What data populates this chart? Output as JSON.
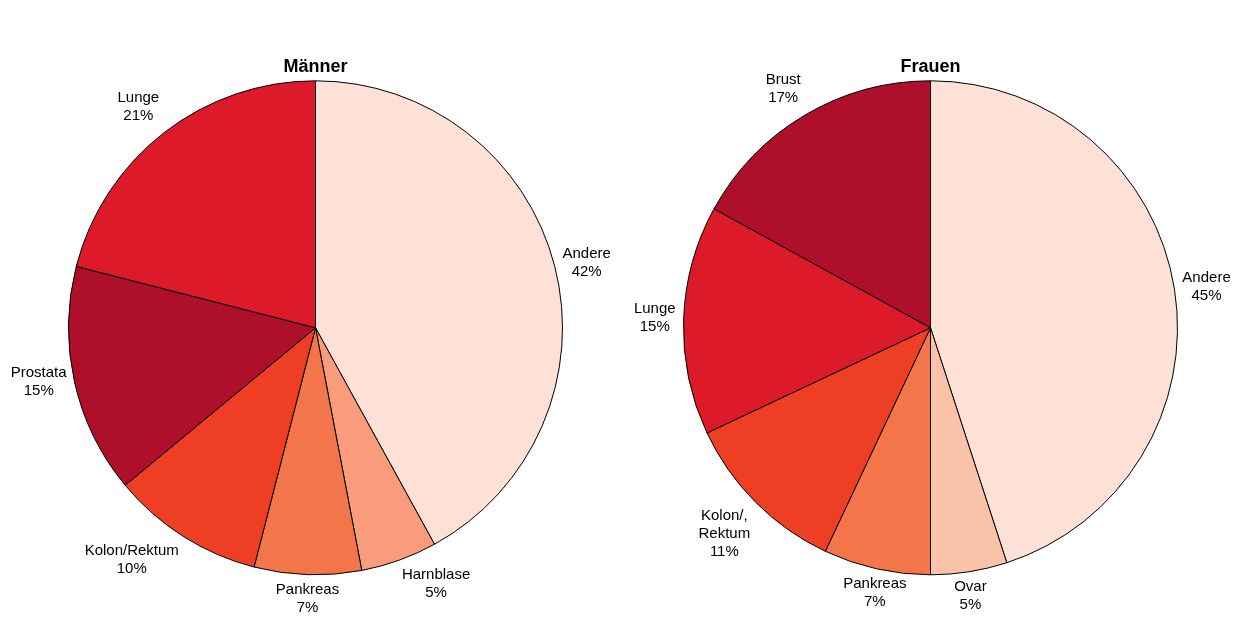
{
  "chart_data": [
    {
      "type": "pie",
      "title": "Männer",
      "categories": [
        "Andere",
        "Harnblase",
        "Pankreas",
        "Kolon/Rektum",
        "Prostata",
        "Lunge"
      ],
      "values": [
        42,
        5,
        7,
        10,
        15,
        21
      ],
      "value_labels": [
        "42%",
        "5%",
        "7%",
        "10%",
        "15%",
        "21%"
      ],
      "colors": [
        "#fde0d6",
        "#f89c7c",
        "#f2764a",
        "#ee3e23",
        "#ae0f2b",
        "#dc1a29"
      ],
      "legend": false
    },
    {
      "type": "pie",
      "title": "Frauen",
      "categories": [
        "Andere",
        "Ovar",
        "Pankreas",
        "Kolon/,\nRektum",
        "Lunge",
        "Brust"
      ],
      "values": [
        45,
        5,
        7,
        11,
        15,
        17
      ],
      "value_labels": [
        "45%",
        "5%",
        "7%",
        "11%",
        "15%",
        "17%"
      ],
      "colors": [
        "#fde0d6",
        "#fac3a9",
        "#f2764a",
        "#ee3e23",
        "#dc1a29",
        "#ae0f2b"
      ],
      "legend": false
    }
  ]
}
